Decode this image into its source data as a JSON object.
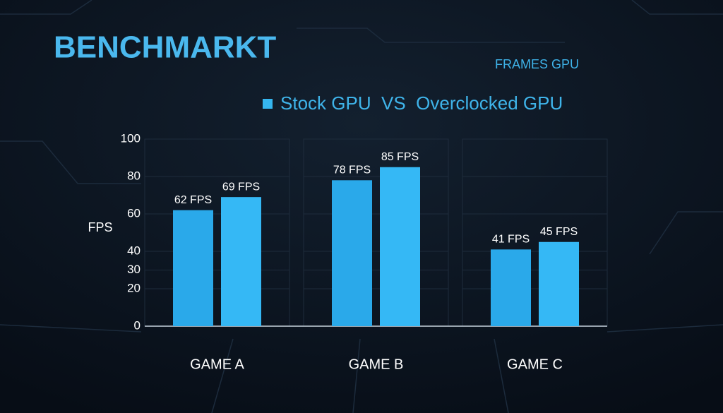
{
  "chart_data": {
    "type": "bar",
    "title": "BENCHMARKT",
    "subtitle": "FRAMES GPU",
    "legend": "Stock GPU  VS  Overclocked GPU",
    "legend_color": "#35b6f0",
    "y_label": "FPS",
    "categories": [
      "GAME A",
      "GAME B",
      "GAME C"
    ],
    "series": [
      {
        "color": "#2aa9ea",
        "values": [
          62,
          78,
          41
        ],
        "value_labels": [
          "62 FPS",
          "78 FPS",
          "41 FPS"
        ]
      },
      {
        "color": "#35b8f5",
        "values": [
          69,
          85,
          45
        ],
        "value_labels": [
          "69 FPS",
          "85 FPS",
          "45 FPS"
        ]
      }
    ],
    "ylim": [
      0,
      100
    ],
    "yticks": [
      0,
      20,
      30,
      40,
      60,
      80,
      100
    ],
    "grid": true
  }
}
